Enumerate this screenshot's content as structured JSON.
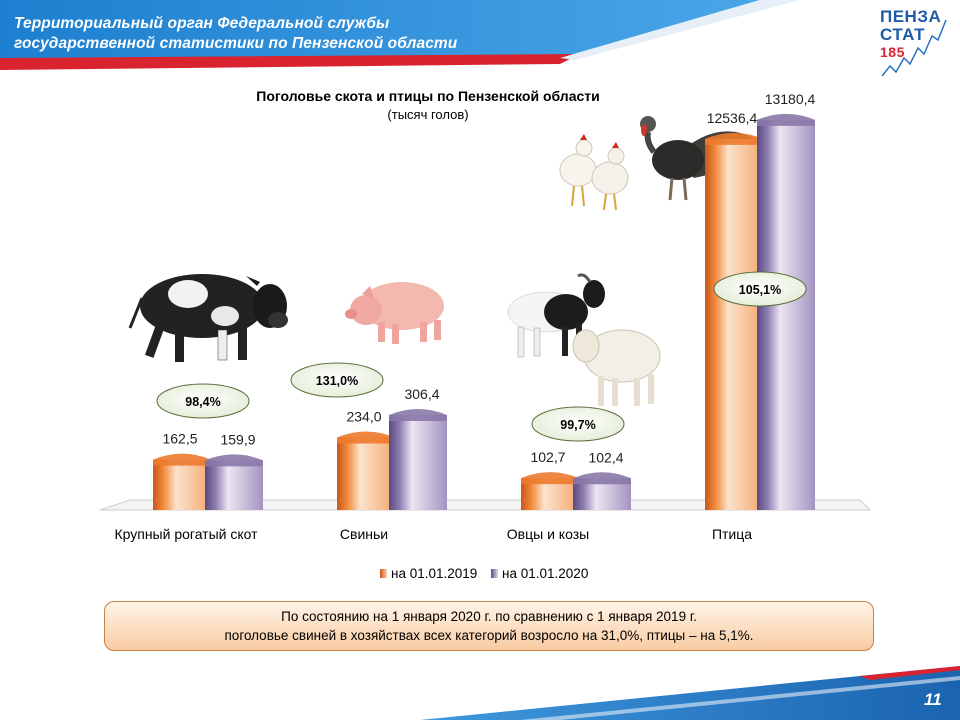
{
  "header": {
    "line1": "Территориальный орган Федеральной службы",
    "line2": "государственной  статистики по Пензенской области"
  },
  "logo": {
    "line1": "ПЕНЗА",
    "line2": "СТАТ",
    "line3": "185"
  },
  "chart_data": {
    "type": "bar",
    "title": "Поголовье скота и птицы по Пензенской области",
    "subtitle": "(тысяч голов)",
    "categories": [
      "Крупный рогатый скот",
      "Свиньи",
      "Овцы и козы",
      "Птица"
    ],
    "series": [
      {
        "name": "на 01.01.2019",
        "values": [
          162.5,
          234.0,
          102.7,
          12536.4
        ],
        "labels": [
          "162,5",
          "234,0",
          "102,7",
          "12536,4"
        ],
        "color": "#ec7a2c"
      },
      {
        "name": "на 01.01.2020",
        "values": [
          159.9,
          306.4,
          102.4,
          13180.4
        ],
        "labels": [
          "159,9",
          "306,4",
          "102,4",
          "13180,4"
        ],
        "color": "#8a78a8"
      }
    ],
    "growth_labels": [
      "98,4%",
      "131,0%",
      "99,7%",
      "105,1%"
    ],
    "legend_position": "bottom",
    "grid": false
  },
  "note": {
    "line1": "По состоянию на 1 января 2020 г. по сравнению с 1 января  2019 г.",
    "line2": "поголовье свиней в хозяйствах всех категорий возросло на 31,0%, птицы – на 5,1%."
  },
  "icons": [
    "cow-icon",
    "pig-icon",
    "goat-icon",
    "sheep-icon",
    "chicken-icon",
    "turkey-icon"
  ],
  "page_number": "11"
}
